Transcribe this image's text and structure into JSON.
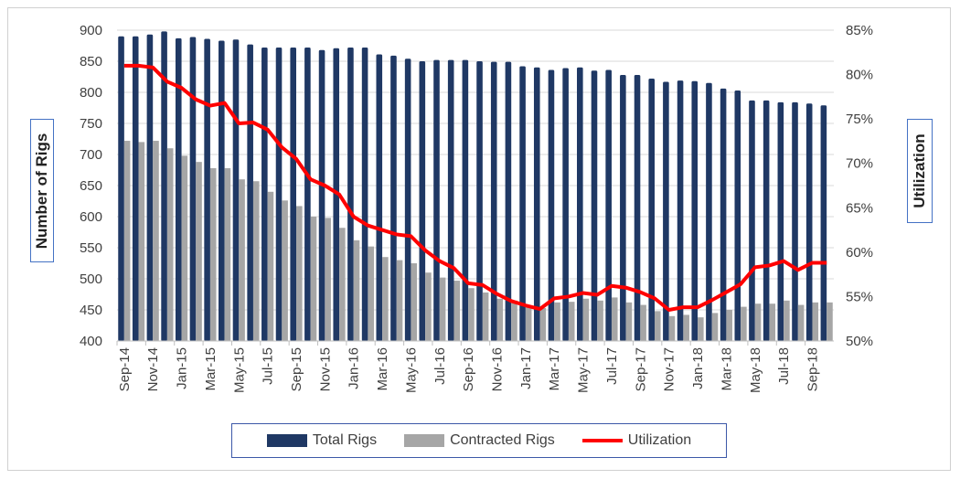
{
  "chart_data": {
    "type": "bar",
    "categories": [
      "Sep-14",
      "Oct-14",
      "Nov-14",
      "Dec-14",
      "Jan-15",
      "Feb-15",
      "Mar-15",
      "Apr-15",
      "May-15",
      "Jun-15",
      "Jul-15",
      "Aug-15",
      "Sep-15",
      "Oct-15",
      "Nov-15",
      "Dec-15",
      "Jan-16",
      "Feb-16",
      "Mar-16",
      "Apr-16",
      "May-16",
      "Jun-16",
      "Jul-16",
      "Aug-16",
      "Sep-16",
      "Oct-16",
      "Nov-16",
      "Dec-16",
      "Jan-17",
      "Feb-17",
      "Mar-17",
      "Apr-17",
      "May-17",
      "Jun-17",
      "Jul-17",
      "Aug-17",
      "Sep-17",
      "Oct-17",
      "Nov-17",
      "Dec-17",
      "Jan-18",
      "Feb-18",
      "Mar-18",
      "Apr-18",
      "May-18",
      "Jun-18",
      "Jul-18",
      "Aug-18",
      "Sep-18",
      "Oct-18"
    ],
    "series": [
      {
        "name": "Total Rigs",
        "type": "bar",
        "axis": "left",
        "color": "#1f3864",
        "values": [
          890,
          890,
          893,
          898,
          887,
          889,
          886,
          883,
          885,
          877,
          872,
          872,
          872,
          872,
          868,
          871,
          872,
          872,
          861,
          859,
          854,
          850,
          852,
          852,
          852,
          850,
          849,
          849,
          842,
          840,
          836,
          839,
          840,
          835,
          836,
          828,
          828,
          822,
          817,
          819,
          818,
          815,
          806,
          803,
          787,
          787,
          784,
          784,
          782,
          779
        ]
      },
      {
        "name": "Contracted Rigs",
        "type": "bar",
        "axis": "left",
        "color": "#a6a6a6",
        "values": [
          722,
          720,
          722,
          710,
          698,
          688,
          678,
          678,
          660,
          657,
          640,
          626,
          617,
          600,
          598,
          582,
          562,
          552,
          535,
          530,
          525,
          510,
          502,
          497,
          485,
          478,
          468,
          465,
          456,
          453,
          462,
          463,
          468,
          465,
          470,
          462,
          458,
          448,
          440,
          442,
          438,
          445,
          450,
          455,
          460,
          460,
          465,
          458,
          462,
          462
        ]
      },
      {
        "name": "Utilization",
        "type": "line",
        "axis": "right",
        "color": "#ff0000",
        "values": [
          81,
          81,
          80.8,
          79.2,
          78.5,
          77.2,
          76.5,
          76.8,
          74.5,
          74.6,
          73.8,
          71.8,
          70.5,
          68.2,
          67.5,
          66.5,
          64,
          63,
          62.5,
          62,
          61.8,
          60.2,
          59,
          58.2,
          56.5,
          56.3,
          55.3,
          54.5,
          54,
          53.6,
          54.8,
          55,
          55.4,
          55.2,
          56.2,
          56,
          55.5,
          54.8,
          53.5,
          53.8,
          53.8,
          54.6,
          55.5,
          56.4,
          58.3,
          58.5,
          59,
          58,
          58.8,
          58.8
        ]
      }
    ],
    "ylabel": "Number of Rigs",
    "ylabel_right": "Utilization",
    "ylim": [
      400,
      900
    ],
    "yticks": [
      "400",
      "450",
      "500",
      "550",
      "600",
      "650",
      "700",
      "750",
      "800",
      "850",
      "900"
    ],
    "ylim_right": [
      50,
      85
    ],
    "yticks_right": [
      "50%",
      "55%",
      "60%",
      "65%",
      "70%",
      "75%",
      "80%",
      "85%"
    ],
    "xtick_labels_every": 2,
    "grid": true,
    "legend": "bottom"
  }
}
